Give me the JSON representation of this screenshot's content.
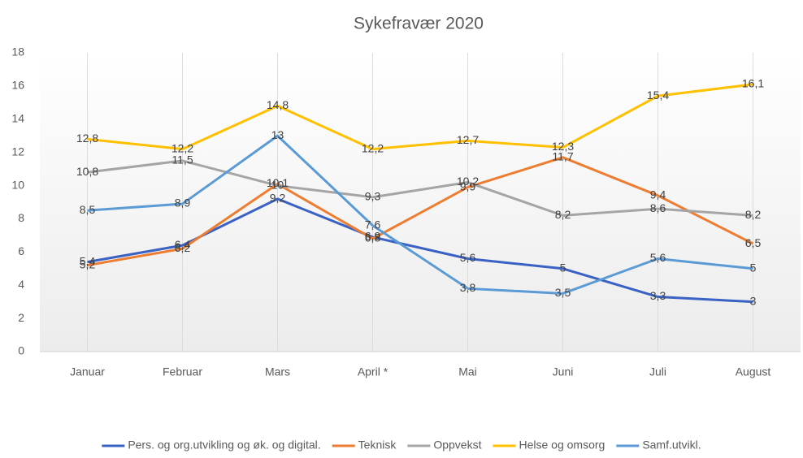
{
  "chart_data": {
    "type": "line",
    "title": "Sykefravær 2020",
    "categories": [
      "Januar",
      "Februar",
      "Mars",
      "April *",
      "Mai",
      "Juni",
      "Juli",
      "August"
    ],
    "ylim": [
      0,
      18
    ],
    "yticks": [
      0,
      2,
      4,
      6,
      8,
      10,
      12,
      14,
      16,
      18
    ],
    "grid": false,
    "legend": "bottom",
    "series": [
      {
        "name": "Pers. og org.utvikling og øk. og digital.",
        "color": "#3a62c4",
        "values": [
          5.4,
          6.4,
          9.2,
          6.9,
          5.6,
          5,
          3.3,
          3
        ],
        "value_labels": [
          "5,4",
          "6,4",
          "9,2",
          "6,9",
          "5,6",
          "5",
          "3,3",
          "3"
        ]
      },
      {
        "name": "Teknisk",
        "color": "#ed7d31",
        "values": [
          5.2,
          6.2,
          10.1,
          6.8,
          9.9,
          11.7,
          9.4,
          6.5
        ],
        "value_labels": [
          "5,2",
          "6,2",
          "10,1",
          "6,8",
          "9,9",
          "11,7",
          "9,4",
          "6,5"
        ]
      },
      {
        "name": "Oppvekst",
        "color": "#a5a5a5",
        "values": [
          10.8,
          11.5,
          10,
          9.3,
          10.2,
          8.2,
          8.6,
          8.2
        ],
        "value_labels": [
          "10,8",
          "11,5",
          "10",
          "9,3",
          "10,2",
          "8,2",
          "8,6",
          "8,2"
        ]
      },
      {
        "name": "Helse og omsorg",
        "color": "#ffc000",
        "values": [
          12.8,
          12.2,
          14.8,
          12.2,
          12.7,
          12.3,
          15.4,
          16.1
        ],
        "value_labels": [
          "12,8",
          "12,2",
          "14,8",
          "12,2",
          "12,7",
          "12,3",
          "15,4",
          "16,1"
        ]
      },
      {
        "name": "Samf.utvikl.",
        "color": "#5b9bd5",
        "values": [
          8.5,
          8.9,
          13,
          7.6,
          3.8,
          3.5,
          5.6,
          5
        ],
        "value_labels": [
          "8,5",
          "8,9",
          "13",
          "7,6",
          "3,8",
          "3,5",
          "5,6",
          "5"
        ]
      }
    ]
  }
}
